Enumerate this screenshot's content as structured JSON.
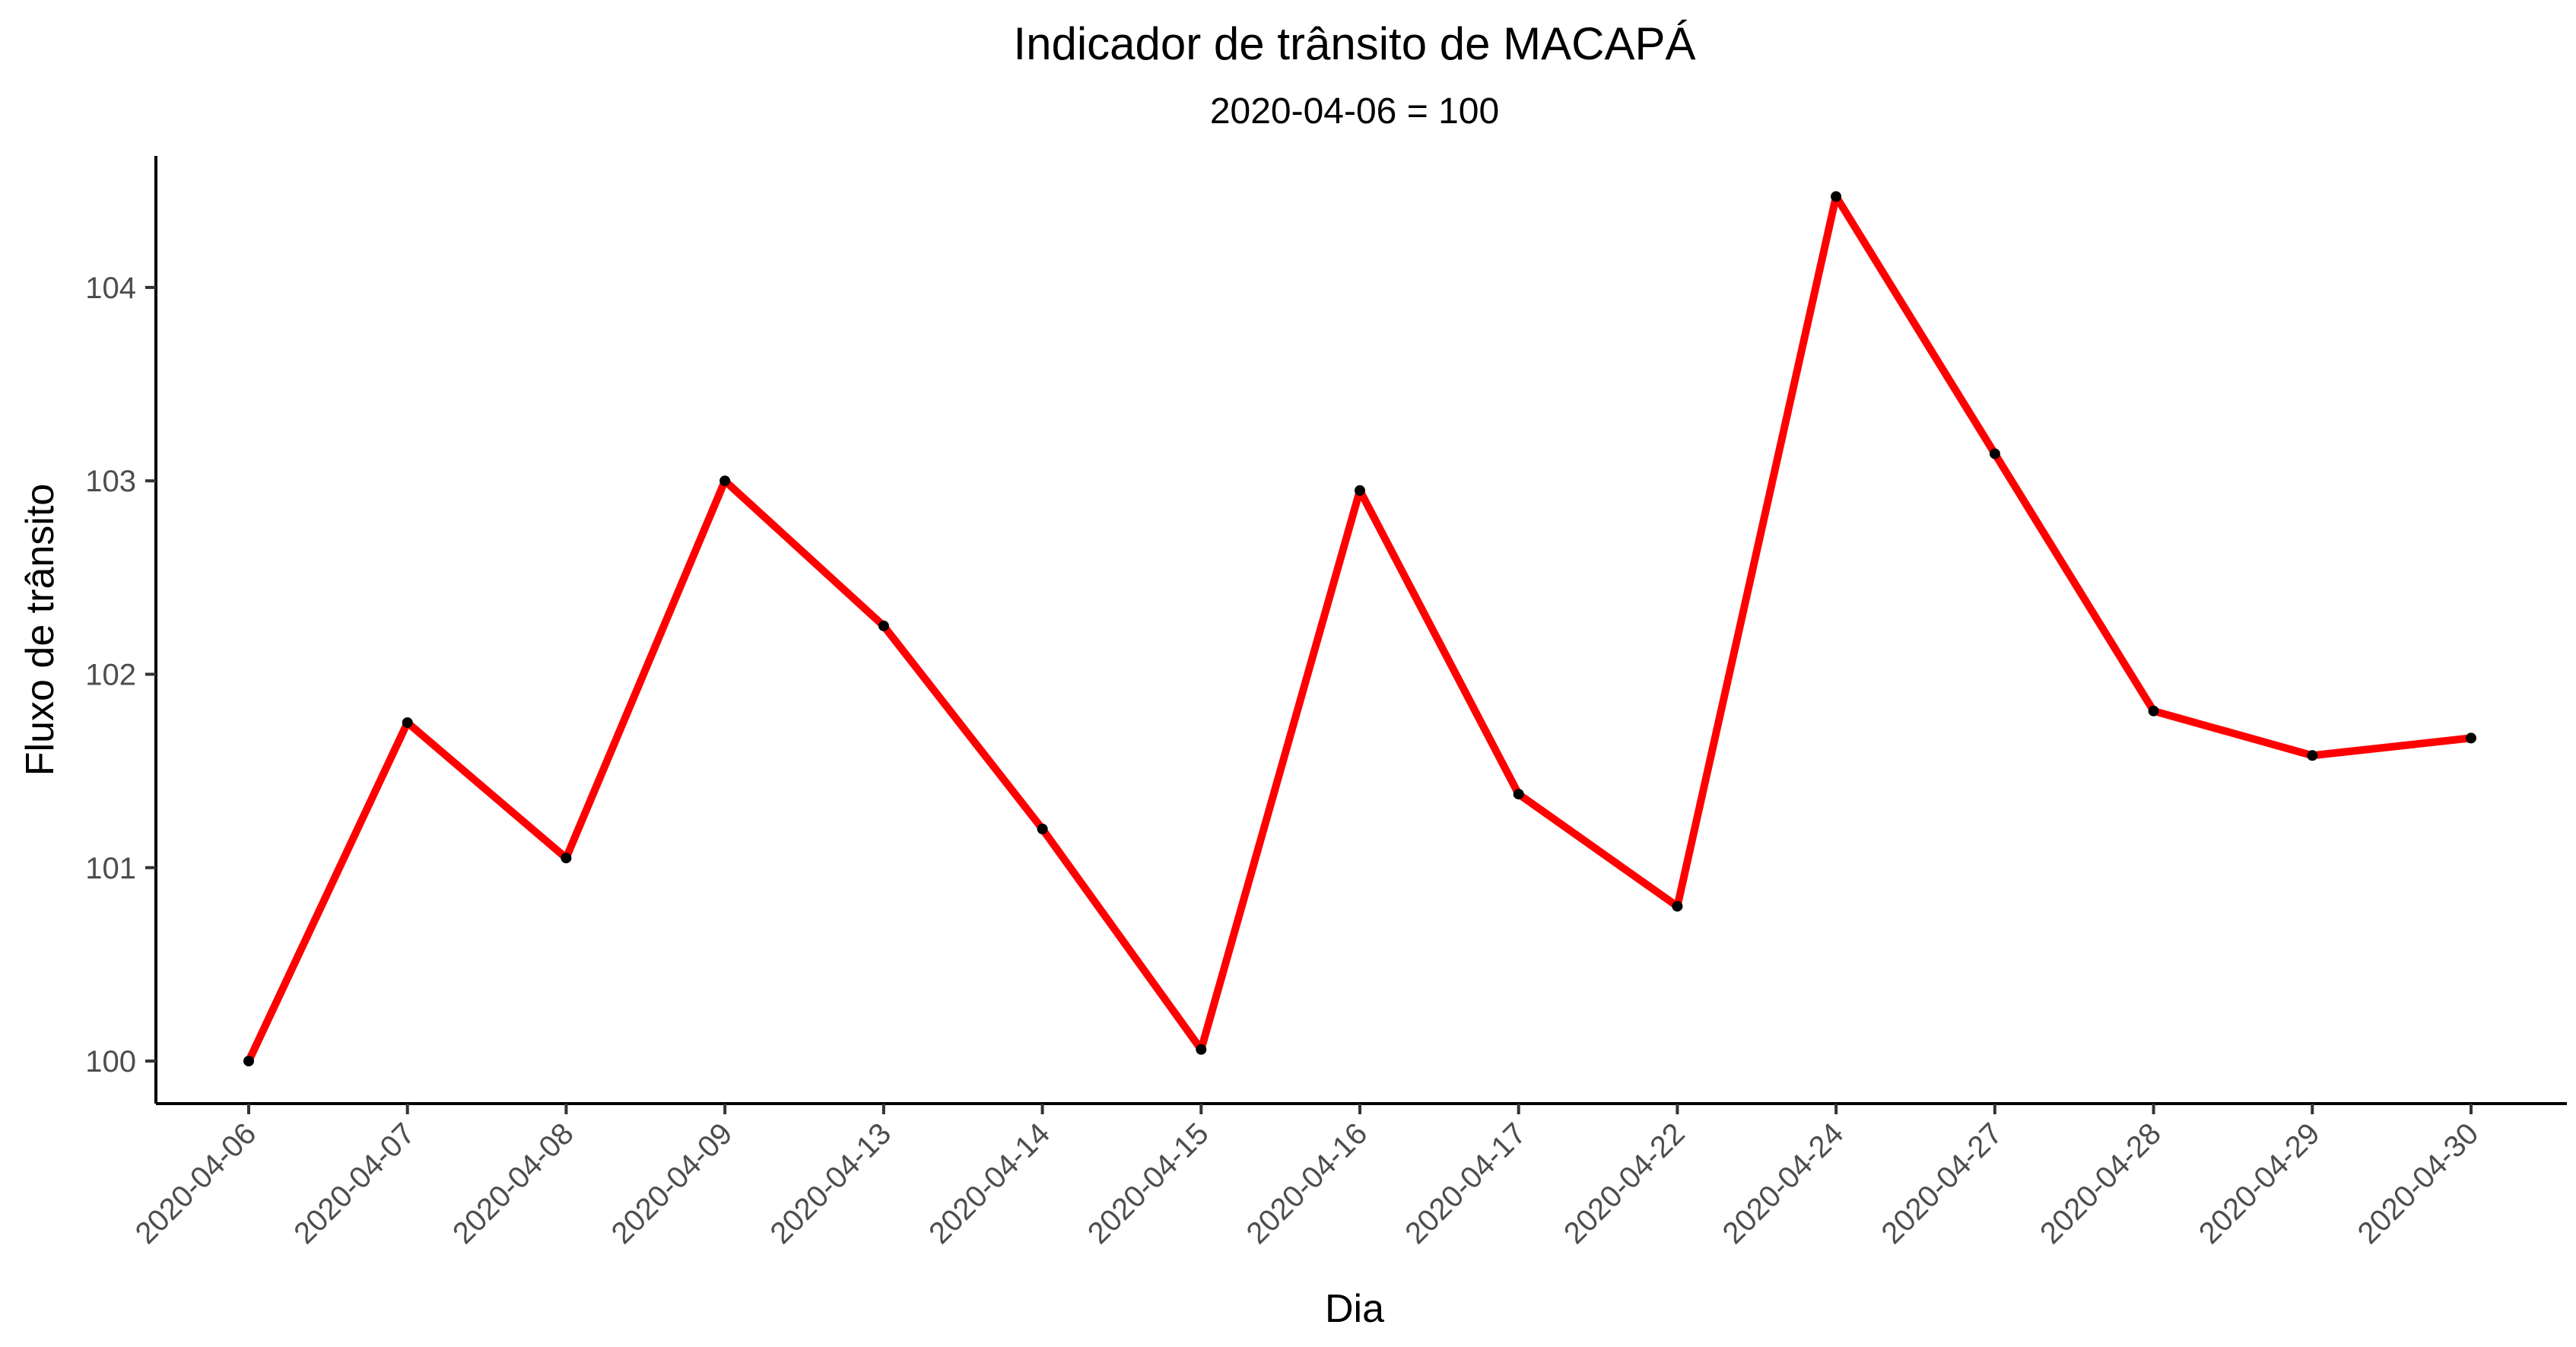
{
  "chart_data": {
    "type": "line",
    "title": "Indicador de trânsito de MACAPÁ",
    "subtitle": "2020-04-06 = 100",
    "xlabel": "Dia",
    "ylabel": "Fluxo de trânsito",
    "categories": [
      "2020-04-06",
      "2020-04-07",
      "2020-04-08",
      "2020-04-09",
      "2020-04-13",
      "2020-04-14",
      "2020-04-15",
      "2020-04-16",
      "2020-04-17",
      "2020-04-22",
      "2020-04-24",
      "2020-04-27",
      "2020-04-28",
      "2020-04-29",
      "2020-04-30"
    ],
    "values": [
      100.0,
      101.75,
      101.05,
      103.0,
      102.25,
      101.2,
      100.06,
      102.95,
      101.38,
      100.8,
      104.47,
      103.14,
      101.81,
      101.58,
      101.67
    ],
    "y_ticks": [
      100,
      101,
      102,
      103,
      104
    ],
    "ylim": [
      99.78,
      104.68
    ],
    "grid": false,
    "legend": "none",
    "line_color": "#ff0000",
    "point_color": "#000000"
  }
}
